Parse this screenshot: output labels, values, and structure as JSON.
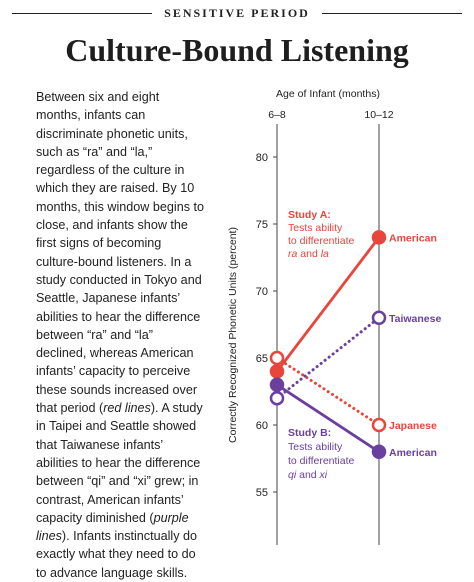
{
  "header": {
    "kicker": "SENSITIVE PERIOD",
    "title": "Culture-Bound Listening"
  },
  "body_text": {
    "p1": "Between six and eight months, infants can discriminate phonetic units, such as “ra” and “la,” regardless of the culture in which they are raised. By 10 months, this window begins to close, and infants show the first signs of becoming culture-bound listeners. In a study conducted in Tokyo and Seattle, Japanese infants’ abilities to hear the difference between “ra” and “la” declined, whereas American infants’ capacity to perceive these sounds increased over that period (",
    "em1": "red lines",
    "p2": "). A study in Taipei and Seattle showed that Taiwanese infants’ abilities to hear the difference between “qi” and “xi” grew; in contrast, American infants’ capacity diminished (",
    "em2": "purple lines",
    "p3": "). Infants instinctually do exactly what they need to do to advance language skills."
  },
  "chart_data": {
    "type": "line",
    "xlabel": "Age of Infant (months)",
    "ylabel": "Correctly Recognized Phonetic Units (percent)",
    "categories": [
      "6–8",
      "10–12"
    ],
    "yticks": [
      55,
      60,
      65,
      70,
      75,
      80
    ],
    "ylim": [
      52,
      82
    ],
    "colors": {
      "red": "#e8453c",
      "purple": "#6a3f9e"
    },
    "annotations": {
      "study_a": [
        "Study A:",
        "Tests ability",
        "to differentiate"
      ],
      "study_a_terms": {
        "a": "ra",
        "and": " and ",
        "b": "la"
      },
      "study_b": [
        "Study B:",
        "Tests ability",
        "to differentiate"
      ],
      "study_b_terms": {
        "a": "qi",
        "and": " and ",
        "b": "xi"
      }
    },
    "series": [
      {
        "name": "American",
        "study": "A",
        "values": [
          64,
          74
        ],
        "color": "#e8453c",
        "style": "solid",
        "marker": "filled"
      },
      {
        "name": "Japanese",
        "study": "A",
        "values": [
          65,
          60
        ],
        "color": "#e8453c",
        "style": "dotted",
        "marker": "open"
      },
      {
        "name": "Taiwanese",
        "study": "B",
        "values": [
          62,
          68
        ],
        "color": "#6a3f9e",
        "style": "dotted",
        "marker": "open"
      },
      {
        "name": "American",
        "study": "B",
        "values": [
          63,
          58
        ],
        "color": "#6a3f9e",
        "style": "solid",
        "marker": "filled"
      }
    ]
  }
}
